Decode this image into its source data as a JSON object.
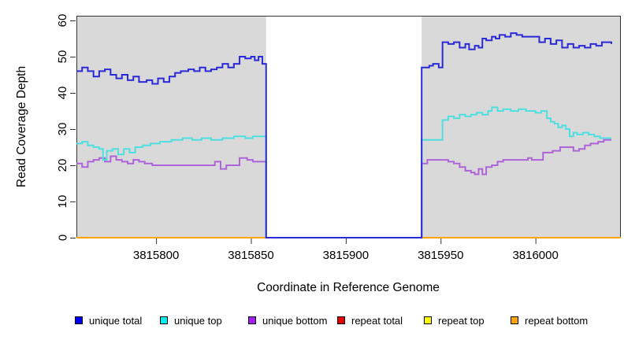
{
  "chart_data": {
    "type": "line-step",
    "title": "",
    "xlabel": "Coordinate in Reference Genome",
    "ylabel": "Read Coverage Depth",
    "xlim": [
      3815758,
      3816045
    ],
    "ylim": [
      0,
      61.3
    ],
    "x_ticks": [
      3815800,
      3815850,
      3815900,
      3815950,
      3816000
    ],
    "y_ticks": [
      0,
      10,
      20,
      30,
      40,
      50,
      60
    ],
    "plot_bg": "#d9d9d9",
    "grid": false,
    "legend_position": "bottom",
    "gap_region": {
      "start": 3815858,
      "end": 3815940,
      "color": "#ffffff"
    },
    "series": [
      {
        "name": "repeat total",
        "color": "#e60000",
        "segments": [
          [
            [
              3815758,
              0
            ],
            [
              3815858,
              0
            ]
          ],
          [
            [
              3815940,
              0
            ],
            [
              3816045,
              0
            ]
          ]
        ]
      },
      {
        "name": "repeat top",
        "color": "#ffff00",
        "segments": [
          [
            [
              3815758,
              0
            ],
            [
              3815858,
              0
            ]
          ],
          [
            [
              3815940,
              0
            ],
            [
              3816045,
              0
            ]
          ]
        ]
      },
      {
        "name": "repeat bottom",
        "color": "#ffa500",
        "segments": [
          [
            [
              3815758,
              0
            ],
            [
              3815858,
              0
            ]
          ],
          [
            [
              3815940,
              0
            ],
            [
              3816045,
              0
            ]
          ]
        ]
      },
      {
        "name": "unique bottom",
        "color": "#ae64d9",
        "segments": [
          [
            [
              3815758,
              20.5
            ],
            [
              3815761,
              19.5
            ],
            [
              3815764,
              21
            ],
            [
              3815767,
              21.5
            ],
            [
              3815770,
              22
            ],
            [
              3815773,
              21
            ],
            [
              3815776,
              22.5
            ],
            [
              3815779,
              21.5
            ],
            [
              3815782,
              21
            ],
            [
              3815785,
              20.5
            ],
            [
              3815788,
              21.5
            ],
            [
              3815791,
              21
            ],
            [
              3815794,
              20.5
            ],
            [
              3815798,
              20
            ],
            [
              3815831,
              21
            ],
            [
              3815834,
              19
            ],
            [
              3815837,
              20
            ],
            [
              3815844,
              22
            ],
            [
              3815848,
              21.5
            ],
            [
              3815851,
              21
            ],
            [
              3815858,
              0
            ],
            [
              3815940,
              20.5
            ],
            [
              3815943,
              21.5
            ],
            [
              3815951,
              21.5
            ],
            [
              3815954,
              21
            ],
            [
              3815957,
              20.5
            ],
            [
              3815960,
              19.5
            ],
            [
              3815963,
              18.5
            ],
            [
              3815966,
              18
            ],
            [
              3815968,
              17.5
            ],
            [
              3815970,
              19
            ],
            [
              3815972,
              17.5
            ],
            [
              3815974,
              19.5
            ],
            [
              3815977,
              20
            ],
            [
              3815980,
              21
            ],
            [
              3815983,
              21.5
            ],
            [
              3815996,
              22
            ],
            [
              3815998,
              21.5
            ],
            [
              3816004,
              23.5
            ],
            [
              3816009,
              24
            ],
            [
              3816013,
              25
            ],
            [
              3816020,
              24
            ],
            [
              3816023,
              24.5
            ],
            [
              3816026,
              25.5
            ],
            [
              3816029,
              26
            ],
            [
              3816033,
              26.5
            ],
            [
              3816036,
              27
            ],
            [
              3816040,
              27
            ]
          ]
        ]
      },
      {
        "name": "unique top",
        "color": "#4fdfe0",
        "segments": [
          [
            [
              3815758,
              26
            ],
            [
              3815761,
              26.5
            ],
            [
              3815764,
              25.5
            ],
            [
              3815767,
              25
            ],
            [
              3815770,
              24.5
            ],
            [
              3815772,
              21.5
            ],
            [
              3815774,
              24
            ],
            [
              3815777,
              24.5
            ],
            [
              3815780,
              23
            ],
            [
              3815783,
              24.5
            ],
            [
              3815786,
              23.5
            ],
            [
              3815789,
              25
            ],
            [
              3815793,
              25.5
            ],
            [
              3815797,
              26
            ],
            [
              3815802,
              26.5
            ],
            [
              3815808,
              27
            ],
            [
              3815814,
              27.5
            ],
            [
              3815819,
              27
            ],
            [
              3815824,
              27.5
            ],
            [
              3815829,
              27
            ],
            [
              3815835,
              27.5
            ],
            [
              3815841,
              28
            ],
            [
              3815847,
              27.5
            ],
            [
              3815851,
              28
            ],
            [
              3815858,
              0
            ],
            [
              3815940,
              27
            ],
            [
              3815951,
              32.5
            ],
            [
              3815954,
              33.5
            ],
            [
              3815957,
              33
            ],
            [
              3815960,
              34
            ],
            [
              3815963,
              33.5
            ],
            [
              3815966,
              34
            ],
            [
              3815969,
              34.5
            ],
            [
              3815972,
              34
            ],
            [
              3815975,
              35
            ],
            [
              3815977,
              36
            ],
            [
              3815980,
              35
            ],
            [
              3815983,
              35.5
            ],
            [
              3815987,
              35
            ],
            [
              3815991,
              35.5
            ],
            [
              3815995,
              35
            ],
            [
              3816000,
              34.5
            ],
            [
              3816003,
              35
            ],
            [
              3816006,
              33
            ],
            [
              3816008,
              32
            ],
            [
              3816010,
              31.5
            ],
            [
              3816012,
              30.5
            ],
            [
              3816014,
              31
            ],
            [
              3816016,
              30
            ],
            [
              3816018,
              28
            ],
            [
              3816020,
              29
            ],
            [
              3816022,
              28.5
            ],
            [
              3816025,
              29
            ],
            [
              3816028,
              28.5
            ],
            [
              3816031,
              28
            ],
            [
              3816034,
              27.5
            ],
            [
              3816040,
              27.5
            ]
          ]
        ]
      },
      {
        "name": "unique total",
        "color": "#2a2ad8",
        "segments": [
          [
            [
              3815758,
              46
            ],
            [
              3815761,
              47
            ],
            [
              3815764,
              46
            ],
            [
              3815767,
              44.5
            ],
            [
              3815770,
              46
            ],
            [
              3815773,
              46.5
            ],
            [
              3815776,
              45
            ],
            [
              3815779,
              44
            ],
            [
              3815782,
              45
            ],
            [
              3815785,
              43.5
            ],
            [
              3815788,
              44.5
            ],
            [
              3815791,
              43
            ],
            [
              3815795,
              43.5
            ],
            [
              3815798,
              42.5
            ],
            [
              3815801,
              44
            ],
            [
              3815804,
              43
            ],
            [
              3815807,
              44.5
            ],
            [
              3815810,
              45.5
            ],
            [
              3815813,
              46
            ],
            [
              3815817,
              46.5
            ],
            [
              3815820,
              46
            ],
            [
              3815823,
              47
            ],
            [
              3815826,
              46
            ],
            [
              3815829,
              46.5
            ],
            [
              3815832,
              47
            ],
            [
              3815835,
              48
            ],
            [
              3815838,
              47
            ],
            [
              3815841,
              48
            ],
            [
              3815844,
              50
            ],
            [
              3815847,
              49.5
            ],
            [
              3815850,
              50
            ],
            [
              3815852,
              49
            ],
            [
              3815854,
              50
            ],
            [
              3815856,
              48
            ],
            [
              3815858,
              0
            ],
            [
              3815940,
              47
            ],
            [
              3815944,
              47.5
            ],
            [
              3815946,
              48
            ],
            [
              3815949,
              47
            ],
            [
              3815951,
              54
            ],
            [
              3815954,
              53.5
            ],
            [
              3815957,
              54
            ],
            [
              3815960,
              52.5
            ],
            [
              3815963,
              53.5
            ],
            [
              3815965,
              52
            ],
            [
              3815968,
              53
            ],
            [
              3815970,
              52.5
            ],
            [
              3815972,
              55
            ],
            [
              3815974,
              54.5
            ],
            [
              3815977,
              55.5
            ],
            [
              3815979,
              55
            ],
            [
              3815981,
              56
            ],
            [
              3815984,
              55.5
            ],
            [
              3815987,
              56.5
            ],
            [
              3815990,
              56
            ],
            [
              3815993,
              55.5
            ],
            [
              3815999,
              55.5
            ],
            [
              3816002,
              54
            ],
            [
              3816005,
              55
            ],
            [
              3816008,
              53.5
            ],
            [
              3816011,
              54.5
            ],
            [
              3816014,
              52.5
            ],
            [
              3816017,
              53.5
            ],
            [
              3816020,
              52.5
            ],
            [
              3816023,
              53
            ],
            [
              3816026,
              52.5
            ],
            [
              3816029,
              53.5
            ],
            [
              3816032,
              53
            ],
            [
              3816035,
              54
            ],
            [
              3816040,
              53.5
            ]
          ]
        ]
      }
    ]
  },
  "legend": {
    "items": [
      {
        "label": "unique total",
        "color": "#0000ee"
      },
      {
        "label": "unique top",
        "color": "#00eeee"
      },
      {
        "label": "unique bottom",
        "color": "#a020f0"
      },
      {
        "label": "repeat total",
        "color": "#e60000"
      },
      {
        "label": "repeat top",
        "color": "#ffff00"
      },
      {
        "label": "repeat bottom",
        "color": "#ffa500"
      }
    ]
  }
}
